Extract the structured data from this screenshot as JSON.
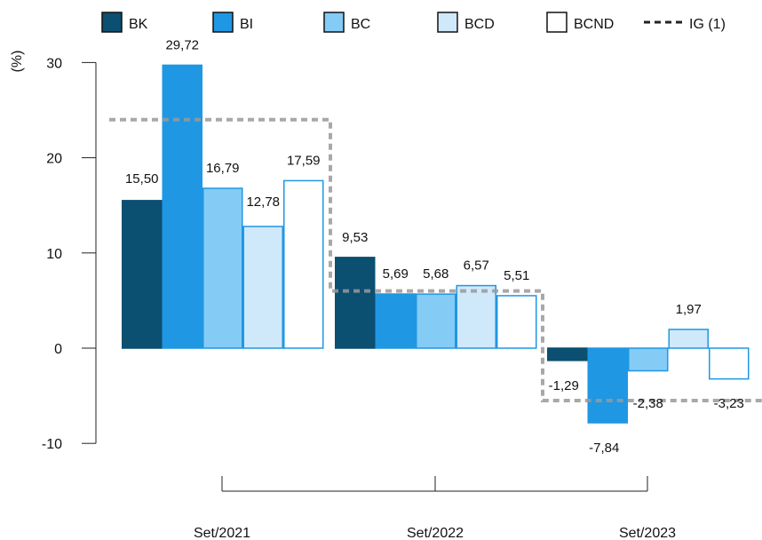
{
  "chart_data": {
    "type": "bar",
    "ylabel": "(%)",
    "ylim": [
      -10,
      30
    ],
    "yticks": [
      "30",
      "20",
      "10",
      "0",
      "-10"
    ],
    "categories": [
      "Set/2021",
      "Set/2022",
      "Set/2023"
    ],
    "series": [
      {
        "name": "BK",
        "values": [
          15.5,
          9.53,
          -1.29
        ],
        "labels": [
          "15,50",
          "9,53",
          "-1,29"
        ],
        "fill": "#0b4f71",
        "stroke": "#0b4f71"
      },
      {
        "name": "BI",
        "values": [
          29.72,
          5.69,
          -7.84
        ],
        "labels": [
          "29,72",
          "5,69",
          "-7,84"
        ],
        "fill": "#1f97e3",
        "stroke": "#1f97e3"
      },
      {
        "name": "BC",
        "values": [
          16.79,
          5.68,
          -2.38
        ],
        "labels": [
          "16,79",
          "5,68",
          "-2,38"
        ],
        "fill": "#84cbf5",
        "stroke": "#1f97e3"
      },
      {
        "name": "BCD",
        "values": [
          12.78,
          6.57,
          1.97
        ],
        "labels": [
          "12,78",
          "6,57",
          "1,97"
        ],
        "fill": "#cfe9fb",
        "stroke": "#1f97e3"
      },
      {
        "name": "BCND",
        "values": [
          17.59,
          5.51,
          -3.23
        ],
        "labels": [
          "17,59",
          "5,51",
          "-3,23"
        ],
        "fill": "#ffffff",
        "stroke": "#1f97e3"
      }
    ],
    "reference_line": {
      "name": "IG (1)",
      "values": [
        24.0,
        6.0,
        -5.5
      ],
      "color": "#999999",
      "style": "dashed"
    },
    "legend_position": "top",
    "grid": false
  }
}
